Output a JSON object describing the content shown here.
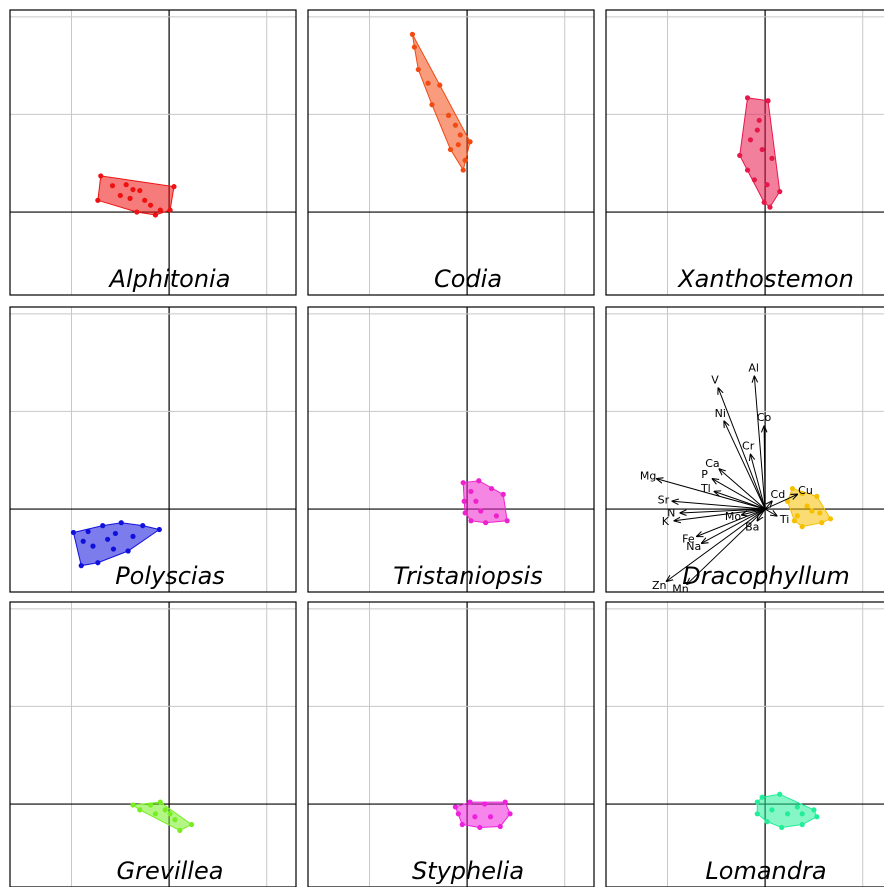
{
  "chart_data": [
    {
      "type": "scatter",
      "title": "Alphitonia",
      "color": "#ee1111",
      "x": [
        -0.7,
        -0.73,
        -0.58,
        -0.44,
        -0.37,
        -0.3,
        -0.33,
        -0.19,
        -0.14,
        -0.09,
        0.05,
        0.01,
        -0.5,
        -0.25,
        -0.4
      ],
      "y": [
        0.37,
        0.12,
        0.27,
        0.28,
        0.23,
        0.22,
        0.0,
        0.07,
        -0.03,
        0.02,
        0.26,
        0.02,
        0.17,
        0.12,
        0.14
      ],
      "xlim": [
        -1.63,
        1.3
      ],
      "ylim": [
        -0.85,
        2.07
      ],
      "xgrid": [
        -1,
        0,
        1
      ],
      "ygrid": [
        0,
        1,
        2
      ]
    },
    {
      "type": "scatter",
      "title": "Codia",
      "color": "#f24a12",
      "x": [
        -0.56,
        -0.54,
        -0.5,
        -0.4,
        -0.28,
        -0.36,
        -0.19,
        -0.12,
        -0.07,
        0.03,
        -0.02,
        -0.04,
        -0.17,
        -0.09
      ],
      "y": [
        1.82,
        1.69,
        1.46,
        1.32,
        1.3,
        1.1,
        0.99,
        0.89,
        0.79,
        0.72,
        0.53,
        0.43,
        0.64,
        0.69
      ],
      "xlim": [
        -1.63,
        1.3
      ],
      "ylim": [
        -0.85,
        2.07
      ],
      "xgrid": [
        -1,
        0,
        1
      ],
      "ygrid": [
        0,
        1,
        2
      ]
    },
    {
      "type": "scatter",
      "title": "Xanthostemon",
      "color": "#e8174a",
      "x": [
        -0.18,
        0.03,
        -0.08,
        -0.15,
        -0.26,
        -0.03,
        0.07,
        -0.18,
        -0.11,
        0.02,
        0.15,
        -0.01,
        0.05,
        -0.06
      ],
      "y": [
        1.17,
        1.14,
        0.84,
        0.74,
        0.58,
        0.64,
        0.55,
        0.43,
        0.33,
        0.28,
        0.21,
        0.1,
        0.05,
        0.94
      ],
      "xlim": [
        -1.63,
        1.3
      ],
      "ylim": [
        -0.85,
        2.07
      ],
      "xgrid": [
        -1,
        0,
        1
      ],
      "ygrid": [
        0,
        1,
        2
      ]
    },
    {
      "type": "scatter",
      "title": "Polyscias",
      "color": "#1111dd",
      "x": [
        -0.98,
        -0.9,
        -0.73,
        -0.57,
        -0.42,
        -0.1,
        -0.27,
        -0.49,
        -0.68,
        -0.83,
        -0.78,
        -0.63,
        -0.37,
        -0.88,
        -0.55
      ],
      "y": [
        -0.24,
        -0.58,
        -0.55,
        -0.41,
        -0.43,
        -0.21,
        -0.17,
        -0.14,
        -0.17,
        -0.23,
        -0.38,
        -0.31,
        -0.28,
        -0.33,
        -0.25
      ],
      "xlim": [
        -1.63,
        1.3
      ],
      "ylim": [
        -0.85,
        2.07
      ],
      "xgrid": [
        -1,
        0,
        1
      ],
      "ygrid": [
        0,
        1,
        2
      ]
    },
    {
      "type": "scatter",
      "title": "Tristaniopsis",
      "color": "#ee22cc",
      "x": [
        -0.04,
        0.12,
        0.25,
        0.37,
        0.41,
        0.19,
        0.04,
        -0.02,
        -0.03,
        0.09,
        0.14,
        0.3,
        0.04
      ],
      "y": [
        0.27,
        0.29,
        0.21,
        0.15,
        -0.12,
        -0.14,
        -0.12,
        -0.04,
        0.08,
        0.08,
        -0.02,
        -0.07,
        0.18
      ],
      "xlim": [
        -1.63,
        1.3
      ],
      "ylim": [
        -0.85,
        2.07
      ],
      "xgrid": [
        -1,
        0,
        1
      ],
      "ygrid": [
        0,
        1,
        2
      ]
    },
    {
      "type": "scatter",
      "title": "Dracophyllum",
      "color": "#f5c000",
      "x": [
        0.28,
        0.38,
        0.53,
        0.67,
        0.58,
        0.38,
        0.33,
        0.23,
        0.48,
        0.43,
        0.56,
        0.3
      ],
      "y": [
        0.21,
        0.16,
        0.13,
        -0.1,
        -0.14,
        -0.18,
        -0.07,
        0.08,
        -0.02,
        0.03,
        -0.04,
        -0.12
      ],
      "xlim": [
        -1.63,
        1.3
      ],
      "ylim": [
        -0.85,
        2.07
      ],
      "xgrid": [
        -1,
        0,
        1
      ],
      "ygrid": [
        0,
        1,
        2
      ],
      "loadings": {
        "labels": [
          "Al",
          "V",
          "Ni",
          "Co",
          "Cr",
          "Ca",
          "P",
          "Mg",
          "Tl",
          "Cu",
          "Cd",
          "Sr",
          "N",
          "K",
          "Mo",
          "Ba",
          "Ti",
          "Fe",
          "Na",
          "Zn",
          "Mn"
        ],
        "x": [
          -0.11,
          -0.48,
          -0.42,
          -0.01,
          -0.15,
          -0.47,
          -0.54,
          -1.11,
          -0.52,
          0.33,
          0.07,
          -0.95,
          -0.87,
          -0.93,
          -0.24,
          -0.08,
          0.12,
          -0.7,
          -0.65,
          -1.01,
          -0.8
        ],
        "y": [
          1.36,
          1.24,
          0.9,
          0.85,
          0.56,
          0.41,
          0.31,
          0.31,
          0.18,
          0.15,
          0.08,
          0.08,
          -0.04,
          -0.12,
          -0.06,
          -0.12,
          -0.07,
          -0.28,
          -0.35,
          -0.74,
          -0.77
        ]
      }
    },
    {
      "type": "scatter",
      "title": "Grevillea",
      "color": "#77ee22",
      "x": [
        -0.37,
        -0.3,
        -0.19,
        -0.09,
        -0.04,
        0.06,
        0.11,
        0.23,
        0.01,
        -0.14
      ],
      "y": [
        -0.01,
        -0.06,
        -0.01,
        0.02,
        -0.06,
        -0.16,
        -0.27,
        -0.21,
        -0.1,
        -0.1
      ],
      "xlim": [
        -1.63,
        1.3
      ],
      "ylim": [
        -0.85,
        2.07
      ],
      "xgrid": [
        -1,
        0,
        1
      ],
      "ygrid": [
        0,
        1,
        2
      ]
    },
    {
      "type": "scatter",
      "title": "Styphelia",
      "color": "#ee22dd",
      "x": [
        -0.12,
        0.03,
        0.18,
        0.39,
        0.44,
        0.34,
        0.13,
        -0.05,
        -0.09,
        0.08,
        0.24
      ],
      "y": [
        -0.03,
        0.02,
        0.0,
        0.02,
        -0.1,
        -0.23,
        -0.24,
        -0.21,
        -0.1,
        -0.13,
        -0.13
      ],
      "xlim": [
        -1.63,
        1.3
      ],
      "ylim": [
        -0.85,
        2.07
      ],
      "xgrid": [
        -1,
        0,
        1
      ],
      "ygrid": [
        0,
        1,
        2
      ]
    },
    {
      "type": "scatter",
      "title": "Lomandra",
      "color": "#22ee99",
      "x": [
        -0.08,
        -0.03,
        0.15,
        0.33,
        0.5,
        0.53,
        0.38,
        0.17,
        0.02,
        -0.08,
        0.23,
        0.07,
        0.38
      ],
      "y": [
        0.02,
        0.07,
        0.1,
        -0.03,
        -0.06,
        -0.13,
        -0.21,
        -0.24,
        -0.18,
        -0.1,
        -0.1,
        -0.06,
        -0.1
      ],
      "xlim": [
        -1.63,
        1.3
      ],
      "ylim": [
        -0.85,
        2.07
      ],
      "xgrid": [
        -1,
        0,
        1
      ],
      "ygrid": [
        0,
        1,
        2
      ]
    }
  ]
}
